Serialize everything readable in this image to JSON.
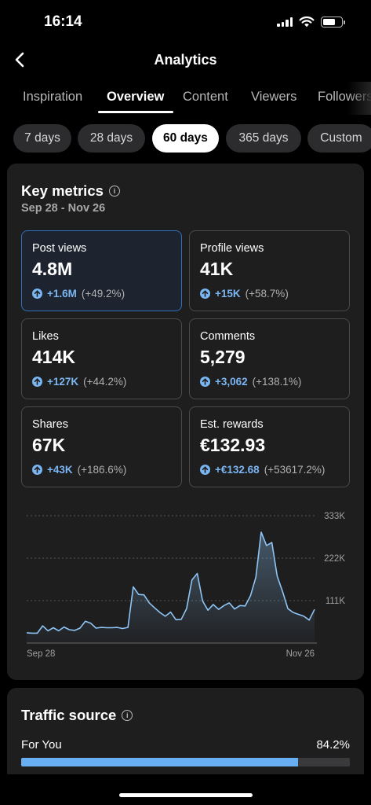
{
  "status_bar": {
    "time": "16:14"
  },
  "nav": {
    "title": "Analytics"
  },
  "tabs": [
    {
      "label": "Inspiration"
    },
    {
      "label": "Overview",
      "active": true
    },
    {
      "label": "Content"
    },
    {
      "label": "Viewers"
    },
    {
      "label": "Followers"
    }
  ],
  "ranges": [
    {
      "label": "7 days"
    },
    {
      "label": "28 days"
    },
    {
      "label": "60 days",
      "active": true
    },
    {
      "label": "365 days"
    },
    {
      "label": "Custom"
    }
  ],
  "key_metrics": {
    "title": "Key metrics",
    "date_range": "Sep 28 - Nov 26",
    "metrics": [
      {
        "label": "Post views",
        "value": "4.8M",
        "delta": "+1.6M",
        "pct": "(+49.2%)",
        "selected": true
      },
      {
        "label": "Profile views",
        "value": "41K",
        "delta": "+15K",
        "pct": "(+58.7%)"
      },
      {
        "label": "Likes",
        "value": "414K",
        "delta": "+127K",
        "pct": "(+44.2%)"
      },
      {
        "label": "Comments",
        "value": "5,279",
        "delta": "+3,062",
        "pct": "(+138.1%)"
      },
      {
        "label": "Shares",
        "value": "67K",
        "delta": "+43K",
        "pct": "(+186.6%)"
      },
      {
        "label": "Est. rewards",
        "value": "€132.93",
        "delta": "+€132.68",
        "pct": "(+53617.2%)"
      }
    ]
  },
  "chart_data": {
    "type": "area",
    "title": "",
    "x_start_label": "Sep 28",
    "x_end_label": "Nov 26",
    "y_tick_labels": [
      "333K",
      "222K",
      "111K"
    ],
    "y_ticks": [
      333000,
      222000,
      111000
    ],
    "ylim": [
      0,
      370000
    ],
    "grid": true,
    "series_color": "#8ec5f5",
    "values": [
      27000,
      26000,
      26000,
      45000,
      32000,
      40000,
      32000,
      42000,
      35000,
      33000,
      39000,
      57000,
      52000,
      39000,
      41000,
      40000,
      40000,
      41000,
      38000,
      41000,
      147000,
      127000,
      126000,
      105000,
      92000,
      80000,
      70000,
      81000,
      61000,
      62000,
      90000,
      165000,
      182000,
      110000,
      86000,
      101000,
      88000,
      98000,
      105000,
      89000,
      98000,
      97000,
      124000,
      172000,
      290000,
      255000,
      263000,
      175000,
      135000,
      90000,
      80000,
      75000,
      70000,
      60000,
      88000
    ]
  },
  "traffic_source": {
    "title": "Traffic source",
    "items": [
      {
        "label": "For You",
        "value": "84.2%",
        "fraction": 0.842
      }
    ]
  }
}
